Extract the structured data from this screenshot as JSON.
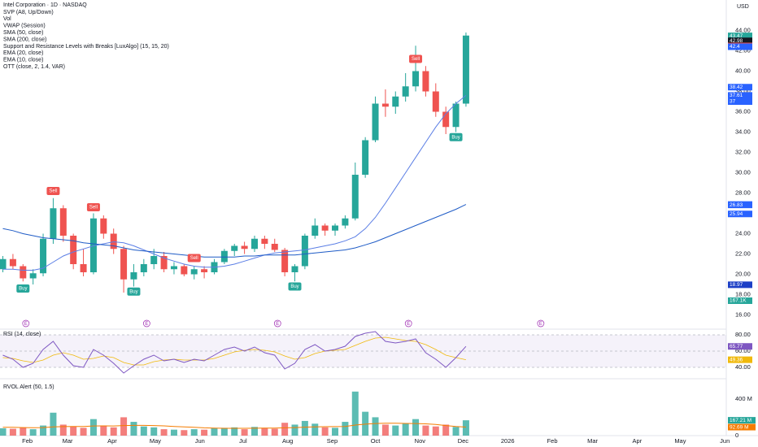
{
  "chart_data": [
    {
      "type": "candlestick",
      "title": "Intel Corporation · 1D · NASDAQ",
      "legend": [
        "SVP (A8, Up/Down)",
        "Vol",
        "VWAP (Session)",
        "SMA (50, close)",
        "SMA (200, close)",
        "Support and Resistance Levels with Breaks [LuxAlgo] (15, 15, 20)",
        "EMA (20, close)",
        "EMA (10, close)",
        "OTT (close, 2, 1.4, VAR)"
      ],
      "currency": "USD",
      "up_color": "#26a69a",
      "down_color": "#ef5350",
      "xlim": [
        12,
        517
      ],
      "xticks": [
        {
          "value": 31,
          "label": "Feb"
        },
        {
          "value": 59,
          "label": "Mar"
        },
        {
          "value": 90,
          "label": "Apr"
        },
        {
          "value": 120,
          "label": "May"
        },
        {
          "value": 151,
          "label": "Jun"
        },
        {
          "value": 181,
          "label": "Jul"
        },
        {
          "value": 212,
          "label": "Aug"
        },
        {
          "value": 243,
          "label": "Sep"
        },
        {
          "value": 273,
          "label": "Oct"
        },
        {
          "value": 304,
          "label": "Nov"
        },
        {
          "value": 334,
          "label": "Dec"
        },
        {
          "value": 365,
          "label": "2026"
        },
        {
          "value": 396,
          "label": "Feb"
        },
        {
          "value": 424,
          "label": "Mar"
        },
        {
          "value": 455,
          "label": "Apr"
        },
        {
          "value": 485,
          "label": "May"
        },
        {
          "value": 516,
          "label": "Jun"
        }
      ],
      "ylim": [
        14.6,
        47
      ],
      "yticks": [
        {
          "value": 16,
          "label": "16.00"
        },
        {
          "value": 18,
          "label": "18.00"
        },
        {
          "value": 20,
          "label": "20.00"
        },
        {
          "value": 22,
          "label": "22.00"
        },
        {
          "value": 24,
          "label": "24.00"
        },
        {
          "value": 26,
          "label": "26.00"
        },
        {
          "value": 28,
          "label": "28.00"
        },
        {
          "value": 30,
          "label": "30.00"
        },
        {
          "value": 32,
          "label": "32.00"
        },
        {
          "value": 34,
          "label": "34.00"
        },
        {
          "value": 36,
          "label": "36.00"
        },
        {
          "value": 38,
          "label": "38.00"
        },
        {
          "value": 40,
          "label": "40.00"
        },
        {
          "value": 42,
          "label": "42.00"
        },
        {
          "value": 44,
          "label": "44.00"
        }
      ],
      "x": [
        14,
        21,
        28,
        35,
        42,
        49,
        56,
        63,
        70,
        77,
        84,
        91,
        98,
        105,
        112,
        119,
        126,
        133,
        140,
        147,
        154,
        161,
        168,
        175,
        182,
        189,
        196,
        203,
        210,
        217,
        224,
        231,
        238,
        245,
        252,
        259,
        266,
        273,
        280,
        287,
        294,
        301,
        308,
        315,
        322,
        329,
        336
      ],
      "open": [
        20.5,
        21.5,
        20.8,
        19.6,
        20.1,
        23.5,
        26.5,
        23.8,
        21.0,
        20.2,
        25.5,
        24.0,
        22.5,
        19.5,
        20.2,
        21.0,
        21.8,
        20.5,
        20.8,
        20.0,
        20.5,
        20.2,
        21.2,
        22.3,
        22.8,
        22.5,
        23.5,
        23.0,
        22.4,
        20.2,
        20.8,
        23.8,
        24.8,
        24.3,
        24.8,
        25.5,
        29.8,
        33.2,
        36.8,
        36.5,
        37.5,
        38.5,
        40.0,
        38.0,
        36.0,
        34.5,
        36.8
      ],
      "high": [
        21.8,
        22.0,
        21.0,
        20.5,
        24.0,
        27.5,
        26.8,
        24.0,
        22.5,
        26.0,
        25.8,
        24.5,
        22.8,
        21.0,
        21.5,
        22.5,
        22.2,
        21.2,
        21.0,
        20.8,
        20.8,
        21.5,
        22.5,
        23.0,
        23.2,
        23.8,
        23.8,
        23.5,
        22.6,
        21.0,
        24.0,
        25.5,
        25.0,
        25.0,
        25.8,
        31.0,
        33.5,
        37.5,
        38.2,
        38.0,
        39.8,
        42.5,
        40.5,
        38.8,
        36.5,
        37.0,
        43.8
      ],
      "low": [
        20.2,
        20.5,
        19.3,
        19.0,
        19.8,
        23.0,
        23.2,
        20.5,
        19.8,
        20.0,
        23.5,
        22.0,
        18.2,
        18.8,
        19.8,
        20.5,
        20.2,
        20.0,
        19.8,
        19.5,
        19.6,
        20.0,
        21.0,
        21.8,
        22.0,
        22.2,
        22.5,
        22.2,
        19.8,
        19.3,
        20.5,
        23.5,
        23.8,
        23.8,
        24.5,
        25.3,
        29.5,
        33.0,
        35.5,
        35.8,
        37.0,
        38.0,
        37.5,
        35.5,
        33.8,
        34.0,
        36.5
      ],
      "close": [
        21.5,
        20.8,
        19.6,
        20.1,
        23.5,
        26.5,
        23.8,
        21.0,
        20.2,
        25.5,
        24.0,
        22.5,
        19.5,
        20.2,
        21.0,
        21.8,
        20.5,
        20.8,
        20.0,
        20.5,
        20.2,
        21.2,
        22.3,
        22.8,
        22.5,
        23.5,
        23.0,
        22.4,
        20.2,
        20.8,
        23.8,
        24.8,
        24.3,
        24.8,
        25.5,
        29.8,
        33.2,
        36.8,
        36.5,
        37.5,
        38.5,
        40.0,
        38.0,
        36.0,
        34.5,
        36.8,
        43.5
      ],
      "series": [
        {
          "name": "SMA (50, close)",
          "color": "#5b7ee5",
          "values": [
            20.5,
            20.5,
            20.4,
            20.4,
            20.6,
            21.2,
            21.8,
            22.2,
            22.5,
            22.8,
            23.0,
            23.2,
            23.1,
            22.8,
            22.4,
            22.0,
            21.6,
            21.3,
            21.0,
            20.8,
            20.7,
            20.7,
            20.8,
            21.0,
            21.3,
            21.6,
            21.9,
            22.1,
            22.2,
            22.3,
            22.4,
            22.6,
            22.8,
            23.0,
            23.3,
            23.7,
            24.5,
            25.6,
            27.0,
            28.5,
            30.0,
            31.5,
            33.0,
            34.5,
            35.8,
            36.8,
            37.61
          ]
        },
        {
          "name": "SMA (200, close)",
          "color": "#1e5bc6",
          "values": [
            24.5,
            24.3,
            24.0,
            23.8,
            23.6,
            23.5,
            23.4,
            23.3,
            23.1,
            23.0,
            22.9,
            22.8,
            22.6,
            22.4,
            22.3,
            22.2,
            22.1,
            22.0,
            21.9,
            21.8,
            21.7,
            21.7,
            21.7,
            21.7,
            21.8,
            21.8,
            21.9,
            21.9,
            21.9,
            21.9,
            22.0,
            22.1,
            22.2,
            22.3,
            22.4,
            22.6,
            22.9,
            23.2,
            23.6,
            24.0,
            24.4,
            24.8,
            25.2,
            25.6,
            26.0,
            26.4,
            26.87
          ]
        }
      ],
      "signals": [
        {
          "label": "Buy",
          "x": 28,
          "y": 18.6,
          "color": "#26a69a"
        },
        {
          "label": "Sell",
          "x": 49,
          "y": 28.2,
          "color": "#ef5350"
        },
        {
          "label": "Sell",
          "x": 77,
          "y": 26.6,
          "color": "#ef5350"
        },
        {
          "label": "Buy",
          "x": 105,
          "y": 18.3,
          "color": "#26a69a"
        },
        {
          "label": "Sell",
          "x": 147,
          "y": 21.6,
          "color": "#ef5350"
        },
        {
          "label": "Buy",
          "x": 217,
          "y": 18.8,
          "color": "#26a69a"
        },
        {
          "label": "Sell",
          "x": 301,
          "y": 41.2,
          "color": "#ef5350"
        },
        {
          "label": "Buy",
          "x": 329,
          "y": 33.5,
          "color": "#26a69a"
        }
      ],
      "events": [
        {
          "label": "E",
          "x": 30
        },
        {
          "label": "E",
          "x": 114
        },
        {
          "label": "E",
          "x": 205
        },
        {
          "label": "E",
          "x": 296
        },
        {
          "label": "E",
          "x": 388
        }
      ],
      "price_tags": [
        {
          "value": 43.47,
          "color": "#26a69a"
        },
        {
          "value": 42.98,
          "color": "#131722"
        },
        {
          "value": 42.48,
          "color": "#ef5350"
        },
        {
          "value": 42.4,
          "color": "#2962ff"
        },
        {
          "value": 38.42,
          "color": "#2962ff"
        },
        {
          "value": 37.61,
          "color": "#2962ff"
        },
        {
          "value": 37.0,
          "color": "#2962ff"
        },
        {
          "value": 26.87,
          "color": "#2962ff"
        },
        {
          "value": 26.83,
          "color": "#2962ff"
        },
        {
          "value": 25.94,
          "color": "#2962ff"
        },
        {
          "value": 18.97,
          "color": "#1c3fc6"
        }
      ],
      "volume_tag": {
        "value": 167100,
        "label": "167.1K",
        "color": "#26a69a"
      }
    },
    {
      "type": "line",
      "title": "RSI (14, close)",
      "color": "#7e57c2",
      "signal_color": "#f0b90b",
      "ylim": [
        26,
        87
      ],
      "yticks": [
        {
          "value": 80,
          "label": "80.00"
        },
        {
          "value": 60,
          "label": "60.00"
        },
        {
          "value": 40,
          "label": "40.00"
        }
      ],
      "values": [
        55,
        50,
        40,
        45,
        62,
        72,
        55,
        42,
        40,
        62,
        55,
        45,
        33,
        42,
        50,
        55,
        48,
        50,
        46,
        50,
        48,
        55,
        62,
        65,
        60,
        65,
        58,
        55,
        38,
        45,
        62,
        68,
        60,
        62,
        66,
        78,
        82,
        84,
        72,
        70,
        72,
        75,
        58,
        50,
        40,
        52,
        65.77
      ],
      "signal": [
        52,
        51,
        48,
        46,
        49,
        55,
        58,
        55,
        50,
        51,
        54,
        52,
        46,
        43,
        43,
        47,
        49,
        50,
        49,
        49,
        49,
        51,
        55,
        59,
        61,
        62,
        61,
        59,
        54,
        50,
        52,
        57,
        60,
        61,
        62,
        67,
        72,
        76,
        77,
        75,
        73,
        72,
        68,
        62,
        55,
        52,
        49.36
      ],
      "tags": [
        {
          "value": 65.77,
          "color": "#7e57c2"
        },
        {
          "value": 49.36,
          "color": "#f0b90b"
        }
      ]
    },
    {
      "type": "bar",
      "title": "RVOL Alert (50, 1.5)",
      "avg_color": "#f57c00",
      "ylim": [
        0,
        620
      ],
      "yticks": [
        {
          "value": 400,
          "label": "400 M"
        },
        0
      ],
      "values": [
        80,
        75,
        90,
        70,
        110,
        250,
        120,
        100,
        85,
        180,
        110,
        90,
        200,
        150,
        100,
        90,
        70,
        65,
        60,
        70,
        65,
        80,
        85,
        90,
        70,
        95,
        85,
        75,
        140,
        120,
        160,
        130,
        90,
        85,
        150,
        480,
        260,
        200,
        120,
        110,
        130,
        180,
        110,
        100,
        120,
        95,
        167.21
      ],
      "average": [
        90,
        90,
        88,
        87,
        88,
        95,
        98,
        100,
        100,
        105,
        106,
        105,
        110,
        112,
        112,
        110,
        106,
        100,
        95,
        90,
        85,
        82,
        80,
        80,
        80,
        81,
        82,
        82,
        85,
        88,
        92,
        96,
        97,
        98,
        100,
        115,
        125,
        132,
        135,
        135,
        133,
        132,
        128,
        122,
        110,
        100,
        92.69
      ],
      "tags": [
        {
          "value": 167.21,
          "label": "167.21 M",
          "color": "#26a69a"
        },
        {
          "value": 92.69,
          "label": "92.69 M",
          "color": "#f57c00"
        }
      ]
    }
  ]
}
